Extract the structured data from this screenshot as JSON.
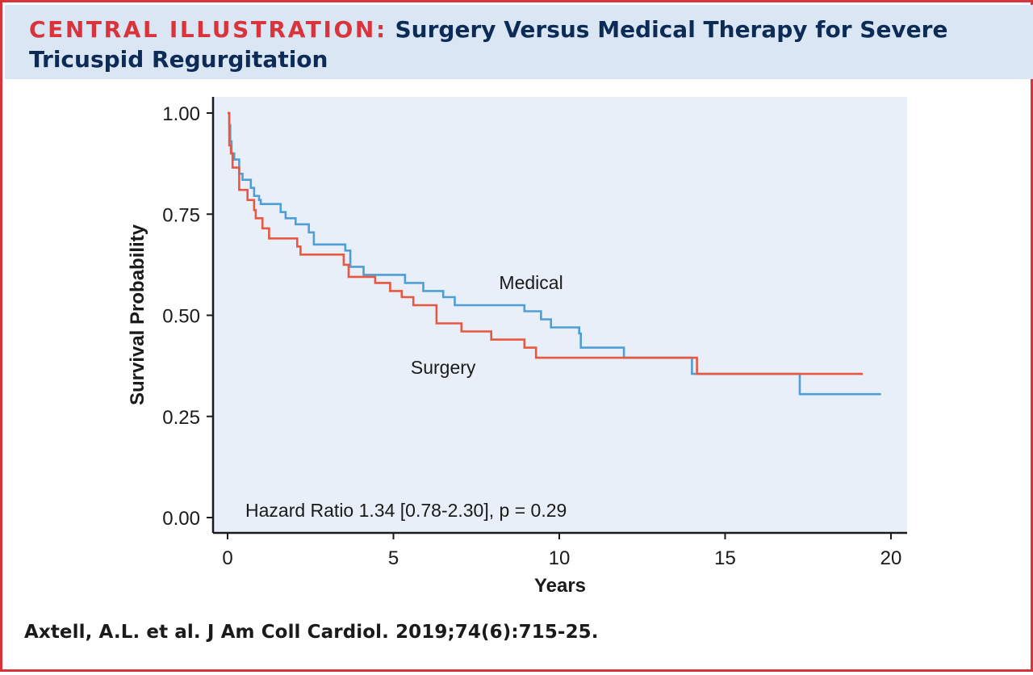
{
  "header": {
    "label": "CENTRAL ILLUSTRATION:",
    "title": "Surgery Versus Medical Therapy for Severe Tricuspid Regurgitation"
  },
  "citation": "Axtell, A.L. et al. J Am Coll Cardiol. 2019;74(6):715-25.",
  "colors": {
    "accent_red": "#d9343b",
    "title_navy": "#0c2c57",
    "header_bg": "#dbe6f4",
    "plot_bg": "#e9eff8",
    "medical": "#4f9fd6",
    "surgery": "#e8573f"
  },
  "chart_data": {
    "type": "line",
    "step": true,
    "title": "",
    "xlabel": "Years",
    "ylabel": "Survival Probability",
    "xlim": [
      0,
      20
    ],
    "ylim": [
      0,
      1
    ],
    "x_ticks": [
      0,
      5,
      10,
      15,
      20
    ],
    "x_tick_labels": [
      "0",
      "5",
      "10",
      "15",
      "20"
    ],
    "y_ticks": [
      0,
      0.25,
      0.5,
      0.75,
      1
    ],
    "y_tick_labels": [
      "0.00",
      "0.25",
      "0.50",
      "0.75",
      "1.00"
    ],
    "grid": false,
    "annotation": "Hazard Ratio 1.34 [0.78-2.30], p = 0.29",
    "series": [
      {
        "name": "Medical",
        "color": "#4f9fd6",
        "x": [
          0,
          0.05,
          0.08,
          0.12,
          0.2,
          0.35,
          0.45,
          0.7,
          0.8,
          0.95,
          1.0,
          1.6,
          1.75,
          2.05,
          2.45,
          2.6,
          3.55,
          3.7,
          4.1,
          5.35,
          5.9,
          6.5,
          6.85,
          8.95,
          9.45,
          9.75,
          10.6,
          10.65,
          11.95,
          14.0,
          17.25,
          19.7
        ],
        "y": [
          1.0,
          0.97,
          0.93,
          0.9,
          0.885,
          0.85,
          0.835,
          0.815,
          0.795,
          0.785,
          0.775,
          0.755,
          0.74,
          0.725,
          0.705,
          0.675,
          0.66,
          0.62,
          0.6,
          0.58,
          0.56,
          0.545,
          0.525,
          0.51,
          0.49,
          0.47,
          0.455,
          0.42,
          0.395,
          0.355,
          0.305,
          0.305
        ]
      },
      {
        "name": "Surgery",
        "color": "#e8573f",
        "x": [
          0,
          0.05,
          0.1,
          0.15,
          0.35,
          0.6,
          0.8,
          0.85,
          1.05,
          1.25,
          2.1,
          2.2,
          3.5,
          3.65,
          4.45,
          4.9,
          5.25,
          5.6,
          6.3,
          7.05,
          7.95,
          8.95,
          9.3,
          14.15,
          19.15
        ],
        "y": [
          1.0,
          0.92,
          0.9,
          0.865,
          0.81,
          0.785,
          0.76,
          0.74,
          0.715,
          0.69,
          0.67,
          0.65,
          0.625,
          0.595,
          0.58,
          0.56,
          0.545,
          0.525,
          0.48,
          0.46,
          0.44,
          0.42,
          0.395,
          0.355,
          0.355
        ]
      }
    ],
    "series_labels": [
      {
        "name": "Medical",
        "x": 9.15,
        "y": 0.565
      },
      {
        "name": "Surgery",
        "x": 6.5,
        "y": 0.355
      }
    ]
  }
}
